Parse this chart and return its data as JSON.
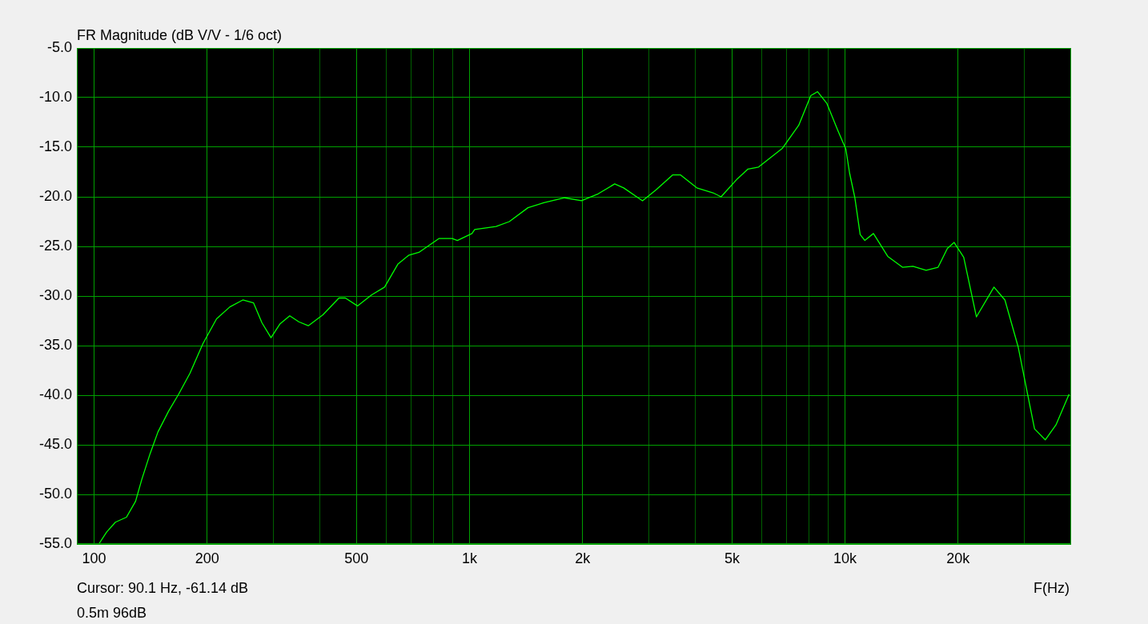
{
  "chart_data": {
    "type": "line",
    "title": "FR Magnitude (dB V/V - 1/6 oct)",
    "xlabel": "F(Hz)",
    "annotations": [
      "Cursor: 90.1 Hz, -61.14 dB",
      "0.5m 96dB"
    ],
    "log": "x",
    "grid": true,
    "legend": false,
    "marker": "none",
    "line_style": "solid",
    "xlim": [
      90,
      40000
    ],
    "ylim": [
      -55,
      -5
    ],
    "xticks": [
      {
        "value": 100,
        "label": "100"
      },
      {
        "value": 200,
        "label": "200"
      },
      {
        "value": 300,
        "label": null
      },
      {
        "value": 400,
        "label": null
      },
      {
        "value": 500,
        "label": "500"
      },
      {
        "value": 600,
        "label": null
      },
      {
        "value": 700,
        "label": null
      },
      {
        "value": 800,
        "label": null
      },
      {
        "value": 900,
        "label": null
      },
      {
        "value": 1000,
        "label": "1k"
      },
      {
        "value": 2000,
        "label": "2k"
      },
      {
        "value": 3000,
        "label": null
      },
      {
        "value": 4000,
        "label": null
      },
      {
        "value": 5000,
        "label": "5k"
      },
      {
        "value": 6000,
        "label": null
      },
      {
        "value": 7000,
        "label": null
      },
      {
        "value": 8000,
        "label": null
      },
      {
        "value": 9000,
        "label": null
      },
      {
        "value": 10000,
        "label": "10k"
      },
      {
        "value": 20000,
        "label": "20k"
      },
      {
        "value": 30000,
        "label": null
      }
    ],
    "yticks": [
      {
        "value": -55,
        "label": "-55.0"
      },
      {
        "value": -50,
        "label": "-50.0"
      },
      {
        "value": -45,
        "label": "-45.0"
      },
      {
        "value": -40,
        "label": "-40.0"
      },
      {
        "value": -35,
        "label": "-35.0"
      },
      {
        "value": -30,
        "label": "-30.0"
      },
      {
        "value": -25,
        "label": "-25.0"
      },
      {
        "value": -20,
        "label": "-20.0"
      },
      {
        "value": -15,
        "label": "-15.0"
      },
      {
        "value": -10,
        "label": "-10.0"
      },
      {
        "value": -5,
        "label": "-5.0"
      }
    ],
    "series": [
      {
        "color": "#00ff00",
        "x": [
          103,
          108,
          114,
          122,
          129,
          134,
          141,
          148,
          158,
          168,
          180,
          195,
          212,
          230,
          249,
          266,
          280,
          296,
          313,
          332,
          351,
          372,
          407,
          449,
          467,
          503,
          548,
          594,
          644,
          688,
          733,
          830,
          899,
          928,
          1015,
          1032,
          1176,
          1276,
          1431,
          1577,
          1792,
          1986,
          2200,
          2435,
          2573,
          2888,
          3139,
          3473,
          3648,
          4029,
          4450,
          4675,
          5163,
          5514,
          5884,
          6815,
          7525,
          8105,
          8449,
          8948,
          9565,
          10050,
          10280,
          10620,
          10970,
          11290,
          11900,
          12990,
          14220,
          15160,
          16440,
          17690,
          18730,
          19520,
          20700,
          22380,
          24920,
          26650,
          28890,
          31960,
          34130,
          36440,
          39500
        ],
        "values": [
          -55.0,
          -53.8,
          -52.8,
          -52.3,
          -50.7,
          -48.5,
          -45.9,
          -43.7,
          -41.6,
          -39.9,
          -37.8,
          -34.8,
          -32.3,
          -31.1,
          -30.4,
          -30.7,
          -32.7,
          -34.2,
          -32.8,
          -32.0,
          -32.6,
          -33.0,
          -31.9,
          -30.2,
          -30.2,
          -31.0,
          -29.9,
          -29.1,
          -26.8,
          -25.9,
          -25.6,
          -24.2,
          -24.2,
          -24.4,
          -23.7,
          -23.3,
          -23.0,
          -22.5,
          -21.1,
          -20.6,
          -20.1,
          -20.4,
          -19.7,
          -18.7,
          -19.1,
          -20.4,
          -19.3,
          -17.8,
          -17.8,
          -19.1,
          -19.6,
          -20.0,
          -18.2,
          -17.2,
          -17.0,
          -15.1,
          -12.8,
          -9.8,
          -9.4,
          -10.6,
          -13.3,
          -15.2,
          -17.6,
          -20.1,
          -23.8,
          -24.4,
          -23.7,
          -26.0,
          -27.1,
          -27.0,
          -27.4,
          -27.1,
          -25.2,
          -24.6,
          -26.1,
          -32.1,
          -29.1,
          -30.4,
          -35.1,
          -43.4,
          -44.5,
          -43.0,
          -39.9
        ]
      }
    ]
  }
}
